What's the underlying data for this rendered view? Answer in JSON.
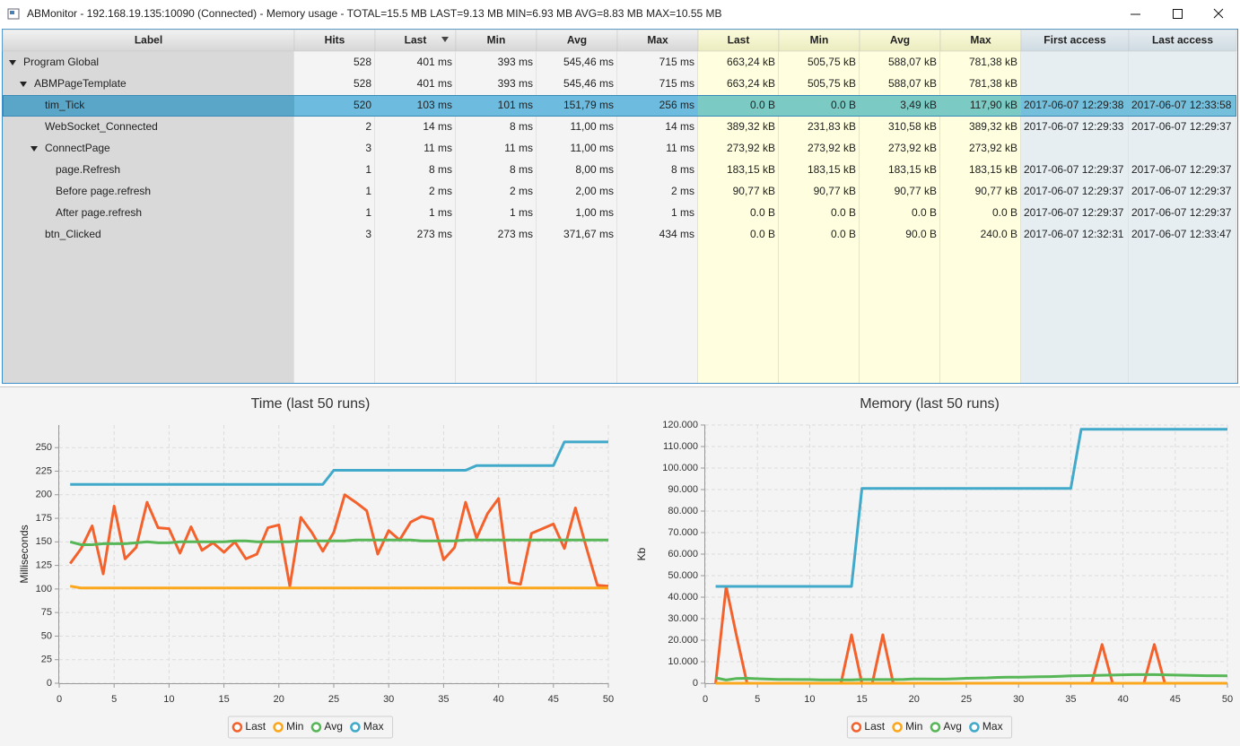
{
  "window": {
    "title": "ABMonitor - 192.168.19.135:10090 (Connected) - Memory usage - TOTAL=15.5 MB LAST=9.13 MB MIN=6.93 MB AVG=8.83 MB MAX=10.55 MB"
  },
  "table": {
    "columns": [
      "Label",
      "Hits",
      "Last",
      "Min",
      "Avg",
      "Max",
      "Last",
      "Min",
      "Avg",
      "Max",
      "First access",
      "Last access"
    ],
    "sort": {
      "column": 2,
      "order": "descending"
    },
    "rows": [
      {
        "label": "Program Global",
        "depth": 0,
        "expanded": true,
        "hits": 528,
        "cells": [
          "401 ms",
          "393 ms",
          "545,46 ms",
          "715 ms",
          "663,24 kB",
          "505,75 kB",
          "588,07 kB",
          "781,38 kB"
        ]
      },
      {
        "label": "ABMPageTemplate",
        "depth": 1,
        "expanded": true,
        "hits": 528,
        "cells": [
          "401 ms",
          "393 ms",
          "545,46 ms",
          "715 ms",
          "663,24 kB",
          "505,75 kB",
          "588,07 kB",
          "781,38 kB"
        ]
      },
      {
        "label": "tim_Tick",
        "depth": 2,
        "selected": true,
        "hits": 520,
        "cells": [
          "103 ms",
          "101 ms",
          "151,79 ms",
          "256 ms",
          "0.0 B",
          "0.0 B",
          "3,49 kB",
          "117,90 kB"
        ],
        "first_access": "2017-06-07 12:29:38",
        "last_access": "2017-06-07 12:33:58"
      },
      {
        "label": "WebSocket_Connected",
        "depth": 2,
        "hits": 2,
        "cells": [
          "14 ms",
          "8 ms",
          "11,00 ms",
          "14 ms",
          "389,32 kB",
          "231,83 kB",
          "310,58 kB",
          "389,32 kB"
        ],
        "first_access": "2017-06-07 12:29:33",
        "last_access": "2017-06-07 12:29:37"
      },
      {
        "label": "ConnectPage",
        "depth": 2,
        "expanded": true,
        "hits": 3,
        "cells": [
          "11 ms",
          "11 ms",
          "11,00 ms",
          "11 ms",
          "273,92 kB",
          "273,92 kB",
          "273,92 kB",
          "273,92 kB"
        ]
      },
      {
        "label": "page.Refresh",
        "depth": 3,
        "hits": 1,
        "cells": [
          "8 ms",
          "8 ms",
          "8,00 ms",
          "8 ms",
          "183,15 kB",
          "183,15 kB",
          "183,15 kB",
          "183,15 kB"
        ],
        "first_access": "2017-06-07 12:29:37",
        "last_access": "2017-06-07 12:29:37"
      },
      {
        "label": "Before page.refresh",
        "depth": 3,
        "hits": 1,
        "cells": [
          "2 ms",
          "2 ms",
          "2,00 ms",
          "2 ms",
          "90,77 kB",
          "90,77 kB",
          "90,77 kB",
          "90,77 kB"
        ],
        "first_access": "2017-06-07 12:29:37",
        "last_access": "2017-06-07 12:29:37"
      },
      {
        "label": "After page.refresh",
        "depth": 3,
        "hits": 1,
        "cells": [
          "1 ms",
          "1 ms",
          "1,00 ms",
          "1 ms",
          "0.0 B",
          "0.0 B",
          "0.0 B",
          "0.0 B"
        ],
        "first_access": "2017-06-07 12:29:37",
        "last_access": "2017-06-07 12:29:37"
      },
      {
        "label": "btn_Clicked",
        "depth": 2,
        "hits": 3,
        "cells": [
          "273 ms",
          "273 ms",
          "371,67 ms",
          "434 ms",
          "0.0 B",
          "0.0 B",
          "90.0 B",
          "240.0 B"
        ],
        "first_access": "2017-06-07 12:32:31",
        "last_access": "2017-06-07 12:33:47"
      }
    ]
  },
  "chart_data": [
    {
      "type": "line",
      "title": "Time (last 50 runs)",
      "y_label": "Milliseconds",
      "grid": true,
      "legend": "bottom",
      "x": [
        1,
        2,
        3,
        4,
        5,
        6,
        7,
        8,
        9,
        10,
        11,
        12,
        13,
        14,
        15,
        16,
        17,
        18,
        19,
        20,
        21,
        22,
        23,
        24,
        25,
        26,
        27,
        28,
        29,
        30,
        31,
        32,
        33,
        34,
        35,
        36,
        37,
        38,
        39,
        40,
        41,
        42,
        43,
        44,
        45,
        46,
        47,
        48,
        49,
        50
      ],
      "xlim": [
        0,
        50
      ],
      "xticks": [
        0,
        5,
        10,
        15,
        20,
        25,
        30,
        35,
        40,
        45,
        50
      ],
      "ylim": [
        0,
        274
      ],
      "yticks": [
        0,
        25,
        50,
        75,
        100,
        125,
        150,
        175,
        200,
        225,
        250
      ],
      "series": [
        {
          "name": "Last",
          "color": "#f3622d",
          "values": [
            127,
            143,
            167,
            116,
            188,
            132,
            144,
            192,
            165,
            164,
            138,
            166,
            141,
            149,
            139,
            150,
            132,
            137,
            165,
            168,
            103,
            176,
            160,
            140,
            160,
            200,
            192,
            183,
            137,
            162,
            152,
            171,
            177,
            174,
            131,
            144,
            192,
            154,
            180,
            196,
            107,
            105,
            159,
            164,
            169,
            143,
            186,
            144,
            104,
            103
          ]
        },
        {
          "name": "Min",
          "color": "#fba71b",
          "values": [
            103,
            101,
            101,
            101,
            101,
            101,
            101,
            101,
            101,
            101,
            101,
            101,
            101,
            101,
            101,
            101,
            101,
            101,
            101,
            101,
            101,
            101,
            101,
            101,
            101,
            101,
            101,
            101,
            101,
            101,
            101,
            101,
            101,
            101,
            101,
            101,
            101,
            101,
            101,
            101,
            101,
            101,
            101,
            101,
            101,
            101,
            101,
            101,
            101,
            101
          ]
        },
        {
          "name": "Avg",
          "color": "#57b757",
          "values": [
            150,
            147,
            147,
            148,
            148,
            148,
            149,
            150,
            149,
            149,
            150,
            150,
            150,
            150,
            150,
            151,
            151,
            150,
            150,
            150,
            150,
            151,
            151,
            151,
            151,
            151,
            152,
            152,
            152,
            152,
            152,
            152,
            151,
            151,
            151,
            151,
            152,
            152,
            152,
            152,
            152,
            152,
            152,
            152,
            152,
            152,
            152,
            152,
            152,
            152
          ]
        },
        {
          "name": "Max",
          "color": "#41a9c9",
          "values": [
            211,
            211,
            211,
            211,
            211,
            211,
            211,
            211,
            211,
            211,
            211,
            211,
            211,
            211,
            211,
            211,
            211,
            211,
            211,
            211,
            211,
            211,
            211,
            211,
            226,
            226,
            226,
            226,
            226,
            226,
            226,
            226,
            226,
            226,
            226,
            226,
            226,
            231,
            231,
            231,
            231,
            231,
            231,
            231,
            231,
            256,
            256,
            256,
            256,
            256
          ]
        }
      ]
    },
    {
      "type": "line",
      "title": "Memory (last 50 runs)",
      "y_label": "Kb",
      "grid": true,
      "legend": "bottom",
      "x": [
        1,
        2,
        3,
        4,
        5,
        6,
        7,
        8,
        9,
        10,
        11,
        12,
        13,
        14,
        15,
        16,
        17,
        18,
        19,
        20,
        21,
        22,
        23,
        24,
        25,
        26,
        27,
        28,
        29,
        30,
        31,
        32,
        33,
        34,
        35,
        36,
        37,
        38,
        39,
        40,
        41,
        42,
        43,
        44,
        45,
        46,
        47,
        48,
        49,
        50
      ],
      "xlim": [
        0,
        50
      ],
      "xticks": [
        0,
        5,
        10,
        15,
        20,
        25,
        30,
        35,
        40,
        45,
        50
      ],
      "ylim": [
        0,
        120000
      ],
      "yticks": [
        0,
        {
          "value": 10000,
          "label": "10.000"
        },
        {
          "value": 20000,
          "label": "20.000"
        },
        {
          "value": 30000,
          "label": "30.000"
        },
        {
          "value": 40000,
          "label": "40.000"
        },
        {
          "value": 50000,
          "label": "50.000"
        },
        {
          "value": 60000,
          "label": "60.000"
        },
        {
          "value": 70000,
          "label": "70.000"
        },
        {
          "value": 80000,
          "label": "80.000"
        },
        {
          "value": 90000,
          "label": "90.000"
        },
        {
          "value": 100000,
          "label": "100.000"
        },
        {
          "value": 110000,
          "label": "110.000"
        },
        {
          "value": 120000,
          "label": "120.000"
        }
      ],
      "series": [
        {
          "name": "Last",
          "color": "#f3622d",
          "values": [
            0,
            45000,
            22000,
            0,
            0,
            0,
            0,
            0,
            0,
            0,
            0,
            0,
            0,
            22500,
            0,
            0,
            22500,
            0,
            0,
            0,
            0,
            0,
            0,
            0,
            0,
            0,
            0,
            0,
            0,
            0,
            0,
            0,
            0,
            0,
            0,
            0,
            0,
            18000,
            0,
            0,
            0,
            0,
            18000,
            0,
            0,
            0,
            0,
            0,
            0,
            0
          ]
        },
        {
          "name": "Min",
          "color": "#fba71b",
          "values": [
            0,
            0,
            0,
            0,
            0,
            0,
            0,
            0,
            0,
            0,
            0,
            0,
            0,
            0,
            0,
            0,
            0,
            0,
            0,
            0,
            0,
            0,
            0,
            0,
            0,
            0,
            0,
            0,
            0,
            0,
            0,
            0,
            0,
            0,
            0,
            0,
            0,
            0,
            0,
            0,
            0,
            0,
            0,
            0,
            0,
            0,
            0,
            0,
            0,
            0
          ]
        },
        {
          "name": "Avg",
          "color": "#57b757",
          "values": [
            2500,
            1500,
            2200,
            2300,
            2100,
            1900,
            1800,
            1800,
            1700,
            1700,
            1600,
            1600,
            1600,
            1600,
            1700,
            1700,
            1700,
            1700,
            1800,
            2000,
            2000,
            1900,
            1900,
            2100,
            2300,
            2400,
            2500,
            2700,
            2800,
            2800,
            2900,
            3000,
            3100,
            3200,
            3400,
            3500,
            3600,
            3700,
            3800,
            3900,
            4000,
            4000,
            4000,
            3900,
            3800,
            3700,
            3600,
            3500,
            3500,
            3400
          ]
        },
        {
          "name": "Max",
          "color": "#41a9c9",
          "values": [
            45000,
            45000,
            45000,
            45000,
            45000,
            45000,
            45000,
            45000,
            45000,
            45000,
            45000,
            45000,
            45000,
            45000,
            90500,
            90500,
            90500,
            90500,
            90500,
            90500,
            90500,
            90500,
            90500,
            90500,
            90500,
            90500,
            90500,
            90500,
            90500,
            90500,
            90500,
            90500,
            90500,
            90500,
            90500,
            118000,
            118000,
            118000,
            118000,
            118000,
            118000,
            118000,
            118000,
            118000,
            118000,
            118000,
            118000,
            118000,
            118000,
            118000
          ]
        }
      ]
    }
  ]
}
